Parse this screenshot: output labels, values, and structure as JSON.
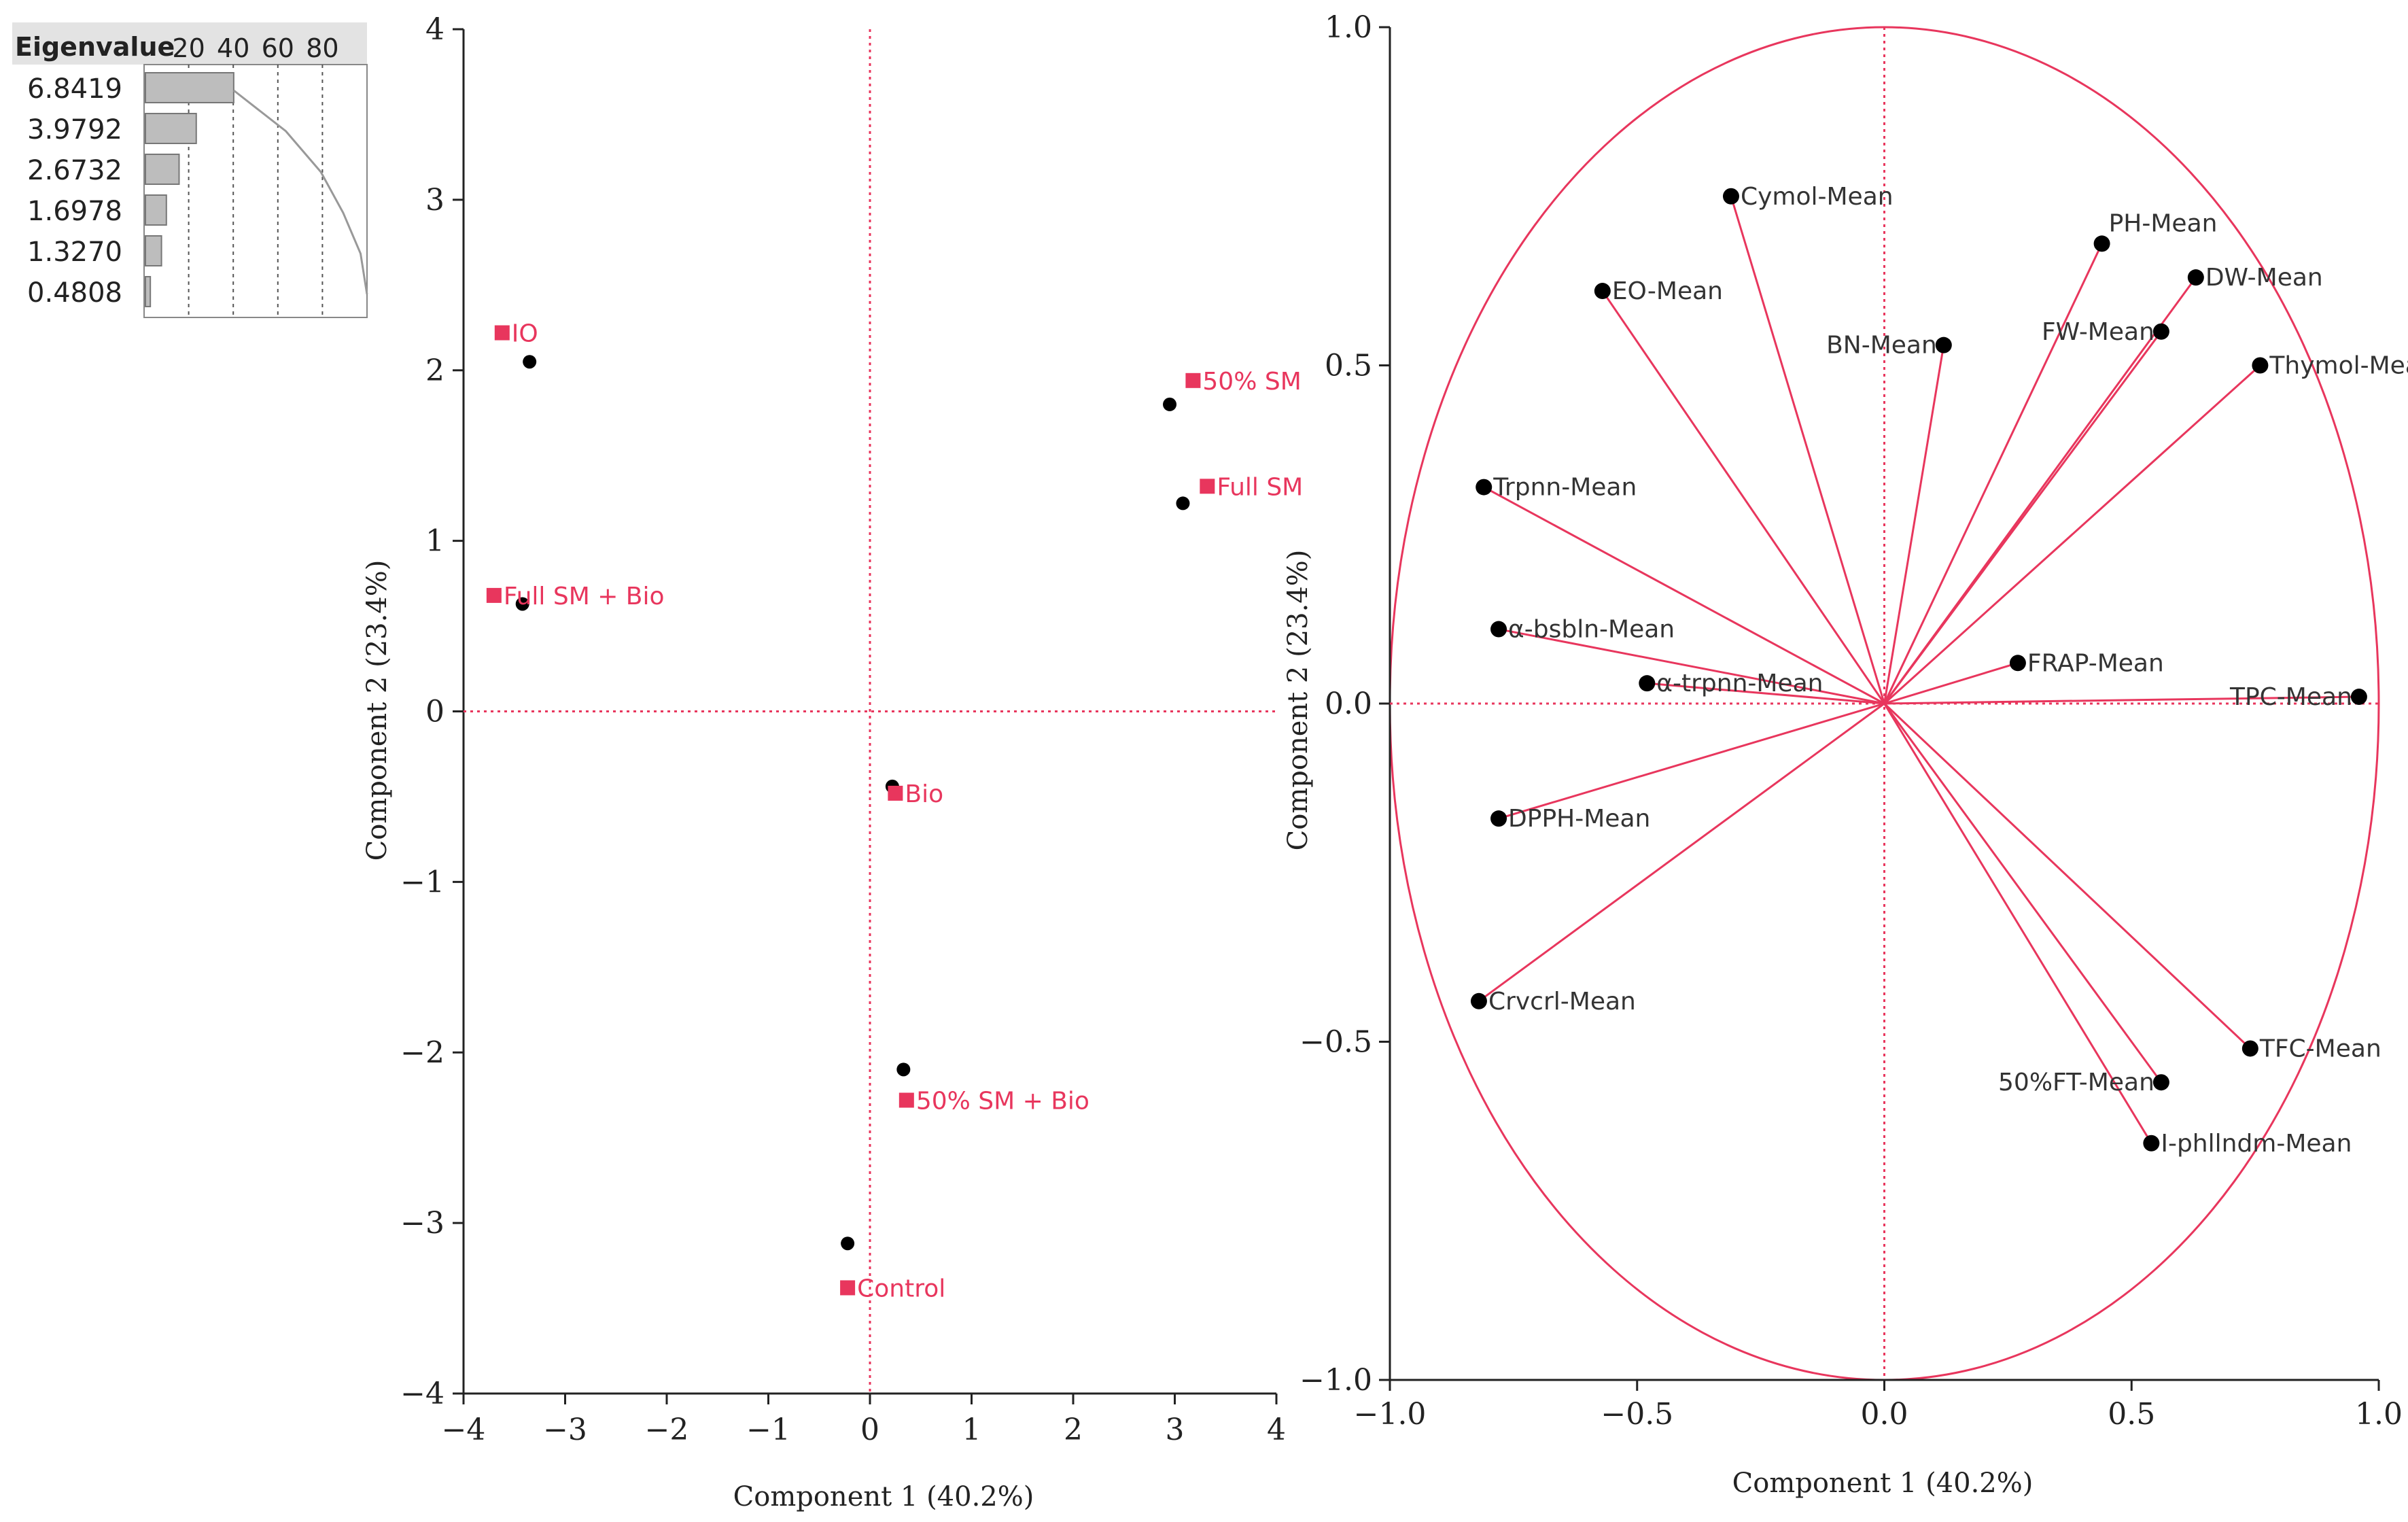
{
  "colors": {
    "accent": "#e8365d",
    "axis": "#222222",
    "bar": "#bdbdbd",
    "point": "#000000"
  },
  "chart_data": [
    {
      "name": "eigenvalue-panel",
      "type": "bar",
      "header": "Eigenvalue",
      "tick_labels": [
        "20",
        "40",
        "60",
        "80"
      ],
      "categories": [
        "6.8419",
        "3.9792",
        "2.6732",
        "1.6978",
        "1.3270",
        "0.4808"
      ],
      "values": [
        6.8419,
        3.9792,
        2.6732,
        1.6978,
        1.327,
        0.4808
      ],
      "percent_values": [
        40.2,
        23.4,
        15.7,
        10.0,
        7.8,
        2.8
      ],
      "cumulative_percent": [
        40.2,
        63.6,
        79.3,
        89.3,
        97.1,
        100.0
      ],
      "xlim": [
        0,
        100
      ]
    },
    {
      "name": "score-plot",
      "type": "scatter",
      "xlabel": "Component 1 (40.2%)",
      "ylabel": "Component 2 (23.4%)",
      "xlim": [
        -4,
        4
      ],
      "ylim": [
        -4,
        4
      ],
      "x_ticks": [
        -4,
        -3,
        -2,
        -1,
        0,
        1,
        2,
        3,
        4
      ],
      "y_ticks": [
        -4,
        -3,
        -2,
        -1,
        0,
        1,
        2,
        3,
        4
      ],
      "x_tick_labels": [
        "−4",
        "−3",
        "−2",
        "−1",
        "0",
        "1",
        "2",
        "3",
        "4"
      ],
      "y_tick_labels": [
        "−4",
        "−3",
        "−2",
        "−1",
        "0",
        "1",
        "2",
        "3",
        "4"
      ],
      "points": [
        {
          "label": "IO",
          "x": -3.35,
          "y": 2.05,
          "marker_x": -3.62,
          "marker_y": 2.22
        },
        {
          "label": "50% SM",
          "x": 2.95,
          "y": 1.8,
          "marker_x": 3.18,
          "marker_y": 1.94
        },
        {
          "label": "Full SM",
          "x": 3.08,
          "y": 1.22,
          "marker_x": 3.32,
          "marker_y": 1.32
        },
        {
          "label": "Full SM + Bio",
          "x": -3.42,
          "y": 0.63,
          "marker_x": -3.7,
          "marker_y": 0.68
        },
        {
          "label": "Bio",
          "x": 0.22,
          "y": -0.44,
          "marker_x": 0.25,
          "marker_y": -0.48
        },
        {
          "label": "50% SM + Bio",
          "x": 0.33,
          "y": -2.1,
          "marker_x": 0.36,
          "marker_y": -2.28
        },
        {
          "label": "Control",
          "x": -0.22,
          "y": -3.12,
          "marker_x": -0.22,
          "marker_y": -3.38
        }
      ]
    },
    {
      "name": "loading-plot",
      "type": "scatter",
      "xlabel": "Component 1 (40.2%)",
      "ylabel": "Component 2 (23.4%)",
      "xlim": [
        -1.0,
        1.0
      ],
      "ylim": [
        -1.0,
        1.0
      ],
      "x_ticks": [
        -1.0,
        -0.5,
        0.0,
        0.5,
        1.0
      ],
      "y_ticks": [
        -1.0,
        -0.5,
        0.0,
        0.5,
        1.0
      ],
      "x_tick_labels": [
        "−1.0",
        "−0.5",
        "0.0",
        "0.5",
        "1.0"
      ],
      "y_tick_labels": [
        "−1.0",
        "−0.5",
        "0.0",
        "0.5",
        "1.0"
      ],
      "circle": "unit correlation circle",
      "vectors": [
        {
          "label": "Cymol-Mean",
          "x": -0.31,
          "y": 0.75
        },
        {
          "label": "PH-Mean",
          "x": 0.44,
          "y": 0.68
        },
        {
          "label": "DW-Mean",
          "x": 0.63,
          "y": 0.63
        },
        {
          "label": "EO-Mean",
          "x": -0.57,
          "y": 0.61
        },
        {
          "label": "FW-Mean",
          "x": 0.56,
          "y": 0.55
        },
        {
          "label": "BN-Mean",
          "x": 0.12,
          "y": 0.53
        },
        {
          "label": "Thymol-Mean",
          "x": 0.76,
          "y": 0.5
        },
        {
          "label": "Trpnn-Mean",
          "x": -0.81,
          "y": 0.32
        },
        {
          "label": "α-bsbln-Mean",
          "x": -0.78,
          "y": 0.11
        },
        {
          "label": "FRAP-Mean",
          "x": 0.27,
          "y": 0.06
        },
        {
          "label": "α-trpnn-Mean",
          "x": -0.48,
          "y": 0.03
        },
        {
          "label": "TPC-Mean",
          "x": 0.96,
          "y": 0.01
        },
        {
          "label": "DPPH-Mean",
          "x": -0.78,
          "y": -0.17
        },
        {
          "label": "Crvcrl-Mean",
          "x": -0.82,
          "y": -0.44
        },
        {
          "label": "TFC-Mean",
          "x": 0.74,
          "y": -0.51
        },
        {
          "label": "50%FT-Mean",
          "x": 0.56,
          "y": -0.56
        },
        {
          "label": "I-phllndm-Mean",
          "x": 0.54,
          "y": -0.65
        }
      ]
    }
  ]
}
